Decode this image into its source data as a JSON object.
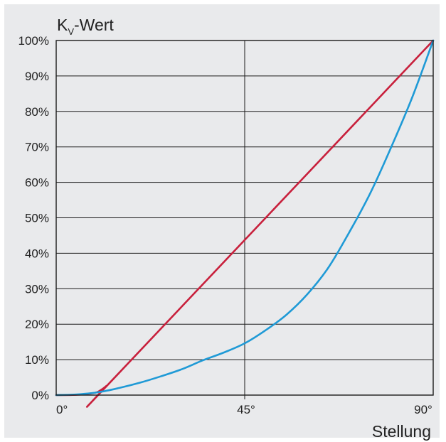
{
  "chart_data": {
    "type": "line",
    "title": "",
    "ylabel": {
      "main": "K",
      "subscript": "V",
      "suffix": "-Wert"
    },
    "xlabel": "Stellung",
    "x_ticks": [
      {
        "value": 0,
        "label": "0°"
      },
      {
        "value": 45,
        "label": "45°"
      },
      {
        "value": 90,
        "label": "90°"
      }
    ],
    "y_ticks": [
      {
        "value": 0,
        "label": "0%"
      },
      {
        "value": 10,
        "label": "10%"
      },
      {
        "value": 20,
        "label": "20%"
      },
      {
        "value": 30,
        "label": "30%"
      },
      {
        "value": 40,
        "label": "40%"
      },
      {
        "value": 50,
        "label": "50%"
      },
      {
        "value": 60,
        "label": "60%"
      },
      {
        "value": 70,
        "label": "70%"
      },
      {
        "value": 80,
        "label": "80%"
      },
      {
        "value": 90,
        "label": "90%"
      },
      {
        "value": 100,
        "label": "100%"
      }
    ],
    "xlim": [
      0,
      90
    ],
    "ylim": [
      0,
      100
    ],
    "grid": {
      "horizontal": true,
      "vertical_at": [
        45
      ]
    },
    "series": [
      {
        "color": "#c8203c",
        "x": [
          0,
          5,
          9,
          10.5,
          12,
          14,
          90
        ],
        "y": [
          0,
          0.1,
          0.6,
          1.3,
          2.6,
          5.0,
          100
        ]
      },
      {
        "color": "#1f9ad6",
        "x": [
          0,
          5,
          10,
          15,
          20,
          25,
          30,
          35,
          40,
          45,
          50,
          55,
          60,
          65,
          70,
          75,
          80,
          85,
          90
        ],
        "y": [
          0,
          0.2,
          0.8,
          2.0,
          3.5,
          5.3,
          7.3,
          9.8,
          12.0,
          14.6,
          18.3,
          22.7,
          28.5,
          36.0,
          46.0,
          57.0,
          70.0,
          84.0,
          100
        ]
      }
    ]
  }
}
